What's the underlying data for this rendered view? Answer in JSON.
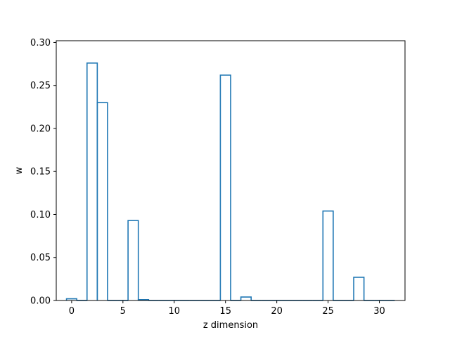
{
  "chart_data": {
    "type": "bar",
    "style": "step-histogram",
    "title": "",
    "xlabel": "z dimension",
    "ylabel": "w",
    "xlim": [
      -1.5,
      32.5
    ],
    "ylim": [
      0,
      0.302
    ],
    "x": [
      0,
      1,
      2,
      3,
      4,
      5,
      6,
      7,
      8,
      9,
      10,
      11,
      12,
      13,
      14,
      15,
      16,
      17,
      18,
      19,
      20,
      21,
      22,
      23,
      24,
      25,
      26,
      27,
      28,
      29,
      30,
      31
    ],
    "values": [
      0.002,
      0.0,
      0.276,
      0.23,
      0.0,
      0.0,
      0.093,
      0.001,
      0.0,
      0.0,
      0.0,
      0.0,
      0.0,
      0.0,
      0.0,
      0.262,
      0.0,
      0.004,
      0.0,
      0.0,
      0.0,
      0.0,
      0.0,
      0.0,
      0.0,
      0.104,
      0.0,
      0.0,
      0.027,
      0.0,
      0.0,
      0.0
    ],
    "xticks": [
      0,
      5,
      10,
      15,
      20,
      25,
      30
    ],
    "xtick_labels": [
      "0",
      "5",
      "10",
      "15",
      "20",
      "25",
      "30"
    ],
    "yticks": [
      0.0,
      0.05,
      0.1,
      0.15,
      0.2,
      0.25,
      0.3
    ],
    "ytick_labels": [
      "0.00",
      "0.05",
      "0.10",
      "0.15",
      "0.20",
      "0.25",
      "0.30"
    ],
    "grid": false,
    "line_color": "#1f77b4"
  }
}
